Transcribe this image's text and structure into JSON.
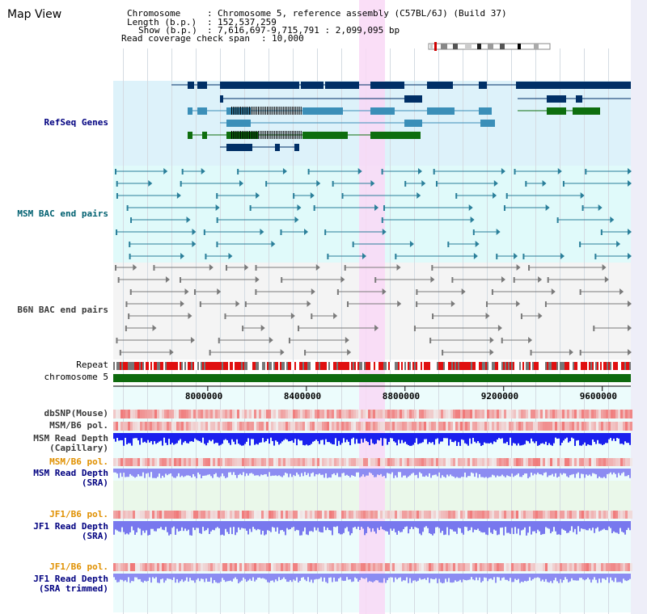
{
  "window": {
    "title": "Map View"
  },
  "info": {
    "chromosome_label": "Chromosome",
    "chromosome_value": "Chromosome 5, reference assembly (C57BL/6J) (Build 37)",
    "length_label": "Length (b.p.)",
    "length_value": "152,537,259",
    "show_label": "Show (b.p.)",
    "show_value": "7,616,697-9,715,791 : 2,099,095 bp",
    "coverage_label": "Read coverage check span",
    "coverage_value": "10,000",
    "separator": ":"
  },
  "tracks": {
    "refseq": "RefSeq Genes",
    "msm_bac": "MSM BAC end pairs",
    "b6n_bac": "B6N BAC end pairs",
    "repeat": "Repeat",
    "chromosome": "chromosome 5",
    "dbsnp": "dbSNP(Mouse)",
    "msm_pol1": "MSM/B6 pol.",
    "msm_depth_cap_1": "MSM Read Depth",
    "msm_depth_cap_2": "(Capillary)",
    "msm_pol2": "MSM/B6 pol.",
    "msm_depth_sra_1": "MSM Read Depth",
    "msm_depth_sra_2": "(SRA)",
    "jf1_pol1": "JF1/B6 pol.",
    "jf1_depth_sra_1": "JF1 Read Depth",
    "jf1_depth_sra_2": "(SRA)",
    "jf1_pol2": "JF1/B6 pol.",
    "jf1_depth_trim_1": "JF1 Read Depth",
    "jf1_depth_trim_2": "(SRA trimmed)"
  },
  "axis": {
    "ticks": [
      "8000000",
      "8400000",
      "8800000",
      "9200000",
      "9600000"
    ],
    "tick_values": [
      8000000,
      8400000,
      8800000,
      9200000,
      9600000
    ],
    "start": 7616697,
    "end": 9715791
  },
  "colors": {
    "refseq_bg": "#ddf2fa",
    "msm_bg": "#e0fafa",
    "b6n_bg": "#f4f4f4",
    "highlight": "#f9d8f6",
    "gene_dark": "#002f66",
    "gene_mid": "#3b8fb8",
    "gene_green": "#0e6e0e",
    "msm_line": "#2a7f9a",
    "b6n_line": "#7a7a7a",
    "chromosome_bar": "#0e6a0e",
    "pol_red": "#f03838",
    "depth_blue": "#1a20ee",
    "depth_light": "#8c8cf2",
    "label_navy": "#000080",
    "label_teal": "#006070",
    "label_orange": "#e09000",
    "label_gray": "#3a3a3a"
  }
}
